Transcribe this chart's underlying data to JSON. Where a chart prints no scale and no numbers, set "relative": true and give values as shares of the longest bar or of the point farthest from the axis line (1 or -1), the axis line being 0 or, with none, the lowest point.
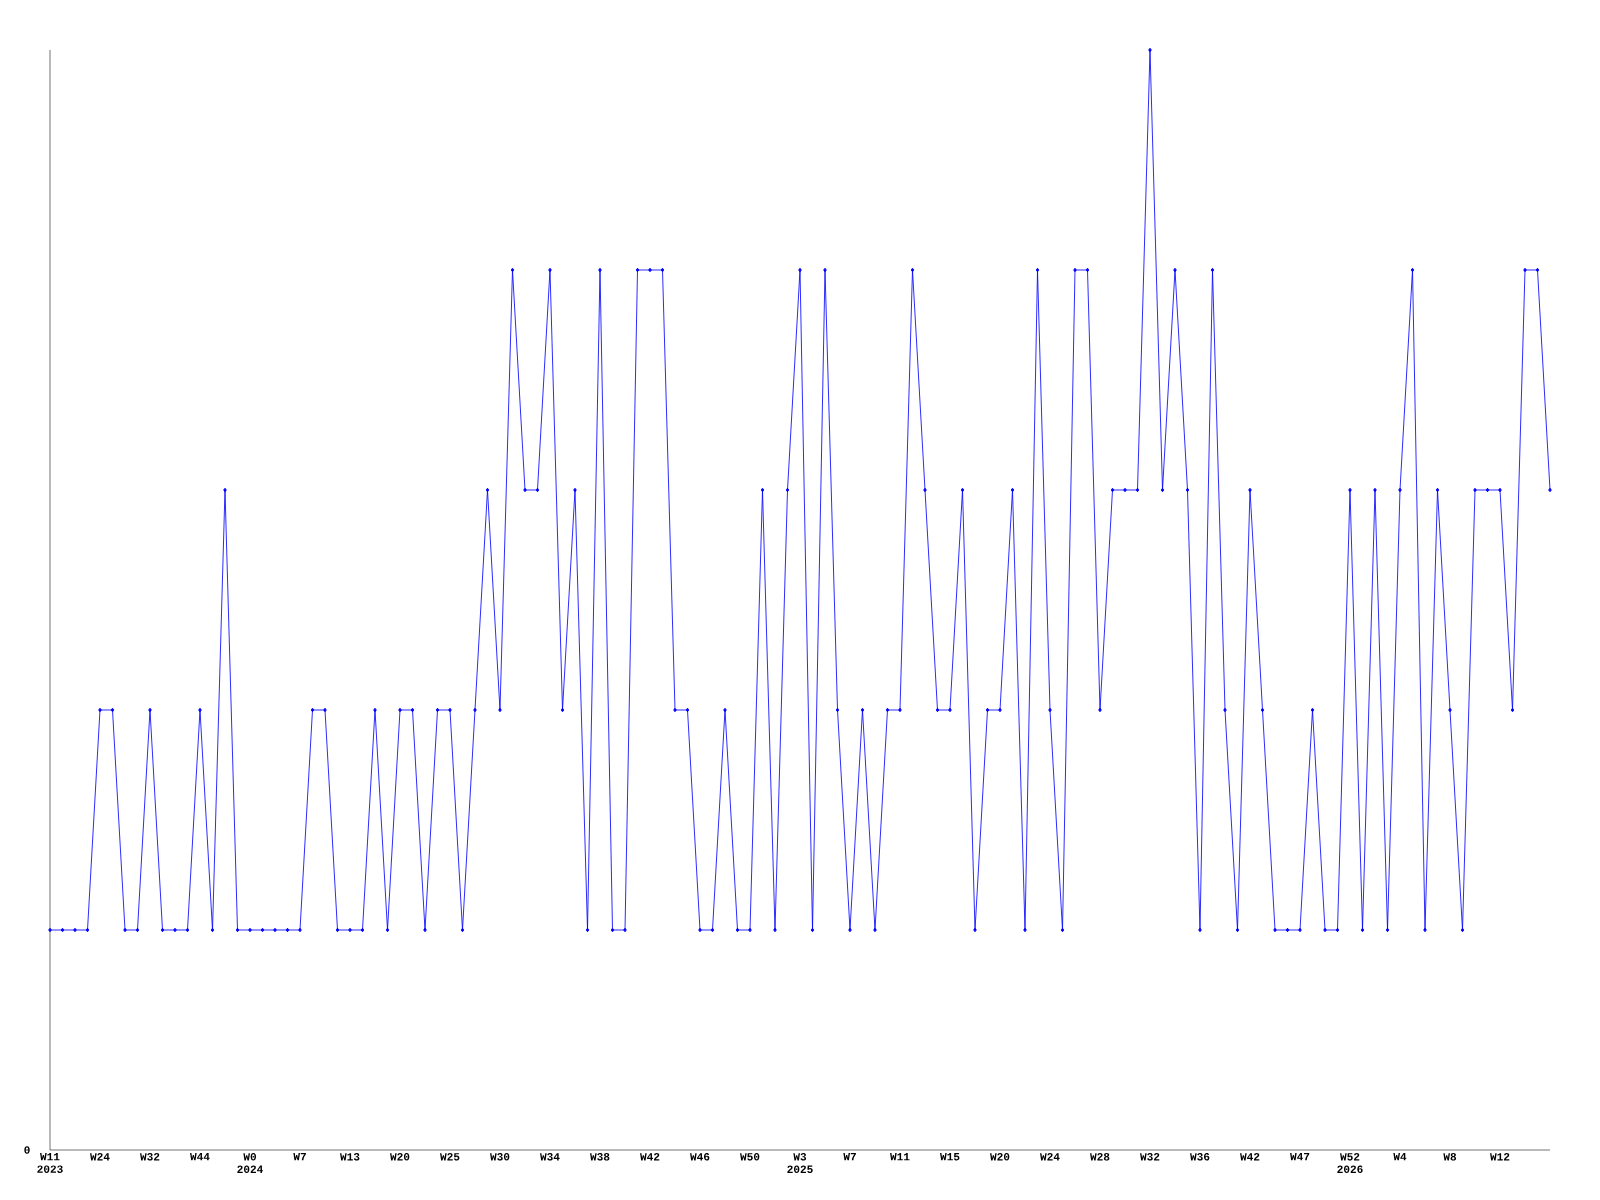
{
  "chart_data": {
    "type": "line",
    "relative": true,
    "color": "#0000ff",
    "marker": "diamond",
    "categories": [
      "W11 2023",
      null,
      null,
      null,
      "W24",
      null,
      null,
      null,
      "W32",
      null,
      null,
      null,
      "W44",
      null,
      null,
      null,
      "W0 2024",
      null,
      null,
      null,
      "W7",
      null,
      null,
      null,
      "W13",
      null,
      null,
      null,
      "W20",
      null,
      null,
      null,
      "W25",
      null,
      null,
      null,
      "W30",
      null,
      null,
      null,
      "W34",
      null,
      null,
      null,
      "W38",
      null,
      null,
      null,
      "W42",
      null,
      null,
      null,
      "W46",
      null,
      null,
      null,
      "W50",
      null,
      null,
      null,
      "W3 2025",
      null,
      null,
      null,
      "W7",
      null,
      null,
      null,
      "W11",
      null,
      null,
      null,
      "W15",
      null,
      null,
      null,
      "W20",
      null,
      null,
      null,
      "W24",
      null,
      null,
      null,
      "W28",
      null,
      null,
      null,
      "W32",
      null,
      null,
      null,
      "W36",
      null,
      null,
      null,
      "W42",
      null,
      null,
      null,
      "W47",
      null,
      null,
      null,
      "W52 2026",
      null,
      null,
      null,
      "W4",
      null,
      null,
      null,
      "W8",
      null,
      null,
      null,
      "W12",
      null,
      null,
      null,
      null
    ],
    "values": [
      0.2,
      0.2,
      0.2,
      0.2,
      0.4,
      0.4,
      0.2,
      0.2,
      0.4,
      0.2,
      0.2,
      0.2,
      0.4,
      0.2,
      0.6,
      0.2,
      0.2,
      0.2,
      0.2,
      0.2,
      0.2,
      0.4,
      0.4,
      0.2,
      0.2,
      0.2,
      0.4,
      0.2,
      0.4,
      0.4,
      0.2,
      0.4,
      0.4,
      0.2,
      0.4,
      0.6,
      0.4,
      0.8,
      0.6,
      0.6,
      0.8,
      0.4,
      0.6,
      0.2,
      0.8,
      0.2,
      0.2,
      0.8,
      0.8,
      0.8,
      0.4,
      0.4,
      0.2,
      0.2,
      0.4,
      0.2,
      0.2,
      0.6,
      0.2,
      0.6,
      0.8,
      0.2,
      0.8,
      0.4,
      0.2,
      0.4,
      0.2,
      0.4,
      0.4,
      0.8,
      0.6,
      0.4,
      0.4,
      0.6,
      0.2,
      0.4,
      0.4,
      0.6,
      0.2,
      0.8,
      0.4,
      0.2,
      0.8,
      0.8,
      0.4,
      0.6,
      0.6,
      0.6,
      1,
      0.6,
      0.8,
      0.6,
      0.2,
      0.8,
      0.4,
      0.2,
      0.6,
      0.4,
      0.2,
      0.2,
      0.2,
      0.4,
      0.2,
      0.2,
      0.6,
      0.2,
      0.6,
      0.2,
      0.6,
      0.8,
      0.2,
      0.6,
      0.4,
      0.2,
      0.6,
      0.6,
      0.6,
      0.4,
      0.8,
      0.8,
      0.6
    ],
    "annotations": [
      "0"
    ]
  }
}
